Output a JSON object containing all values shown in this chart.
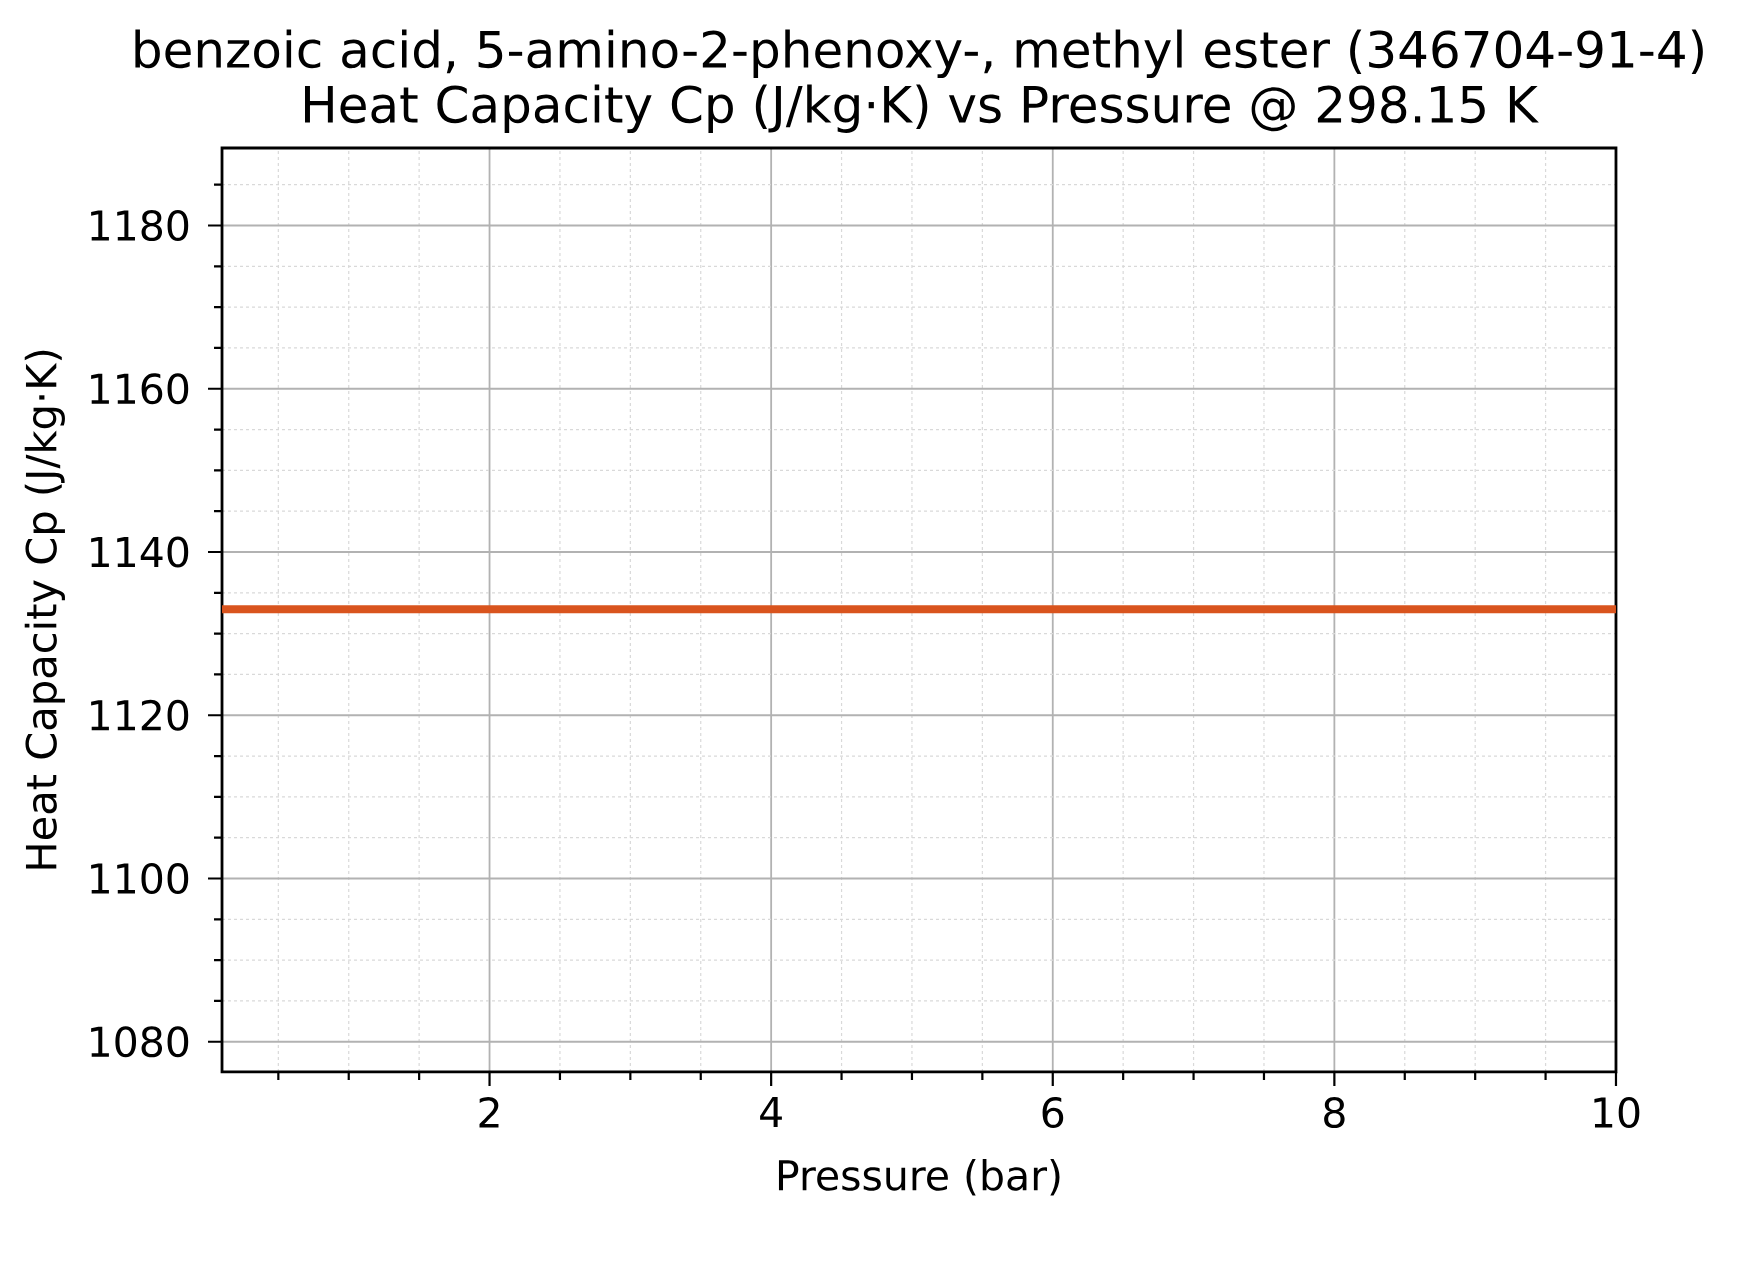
{
  "chart_data": {
    "type": "line",
    "title": "benzoic acid, 5-amino-2-phenoxy-, methyl ester (346704-91-4)",
    "subtitle": "Heat Capacity Cp (J/kg·K) vs Pressure @ 298.15 K",
    "xlabel": "Pressure (bar)",
    "ylabel": "Heat Capacity Cp (J/kg·K)",
    "x": [
      0.1,
      10
    ],
    "series": [
      {
        "color": "#d9541e",
        "values": [
          1133,
          1133
        ]
      }
    ],
    "xlim": [
      0.1,
      10
    ],
    "ylim": [
      1076.3,
      1189.5
    ],
    "xticks": [
      {
        "value": 0.5,
        "label": null
      },
      {
        "value": 1,
        "label": null
      },
      {
        "value": 1.5,
        "label": null
      },
      2,
      {
        "value": 2.5,
        "label": null
      },
      {
        "value": 3,
        "label": null
      },
      {
        "value": 3.5,
        "label": null
      },
      4,
      {
        "value": 4.5,
        "label": null
      },
      {
        "value": 5,
        "label": null
      },
      {
        "value": 5.5,
        "label": null
      },
      6,
      {
        "value": 6.5,
        "label": null
      },
      {
        "value": 7,
        "label": null
      },
      {
        "value": 7.5,
        "label": null
      },
      8,
      {
        "value": 8.5,
        "label": null
      },
      {
        "value": 9,
        "label": null
      },
      {
        "value": 9.5,
        "label": null
      },
      10
    ],
    "yticks": [
      1080,
      {
        "value": 1085,
        "label": null
      },
      {
        "value": 1090,
        "label": null
      },
      {
        "value": 1095,
        "label": null
      },
      1100,
      {
        "value": 1105,
        "label": null
      },
      {
        "value": 1110,
        "label": null
      },
      {
        "value": 1115,
        "label": null
      },
      1120,
      {
        "value": 1125,
        "label": null
      },
      {
        "value": 1130,
        "label": null
      },
      {
        "value": 1135,
        "label": null
      },
      1140,
      {
        "value": 1145,
        "label": null
      },
      {
        "value": 1150,
        "label": null
      },
      {
        "value": 1155,
        "label": null
      },
      1160,
      {
        "value": 1165,
        "label": null
      },
      {
        "value": 1170,
        "label": null
      },
      {
        "value": 1175,
        "label": null
      },
      1180,
      {
        "value": 1185,
        "label": null
      }
    ],
    "grid": true,
    "line_style": "solid"
  }
}
